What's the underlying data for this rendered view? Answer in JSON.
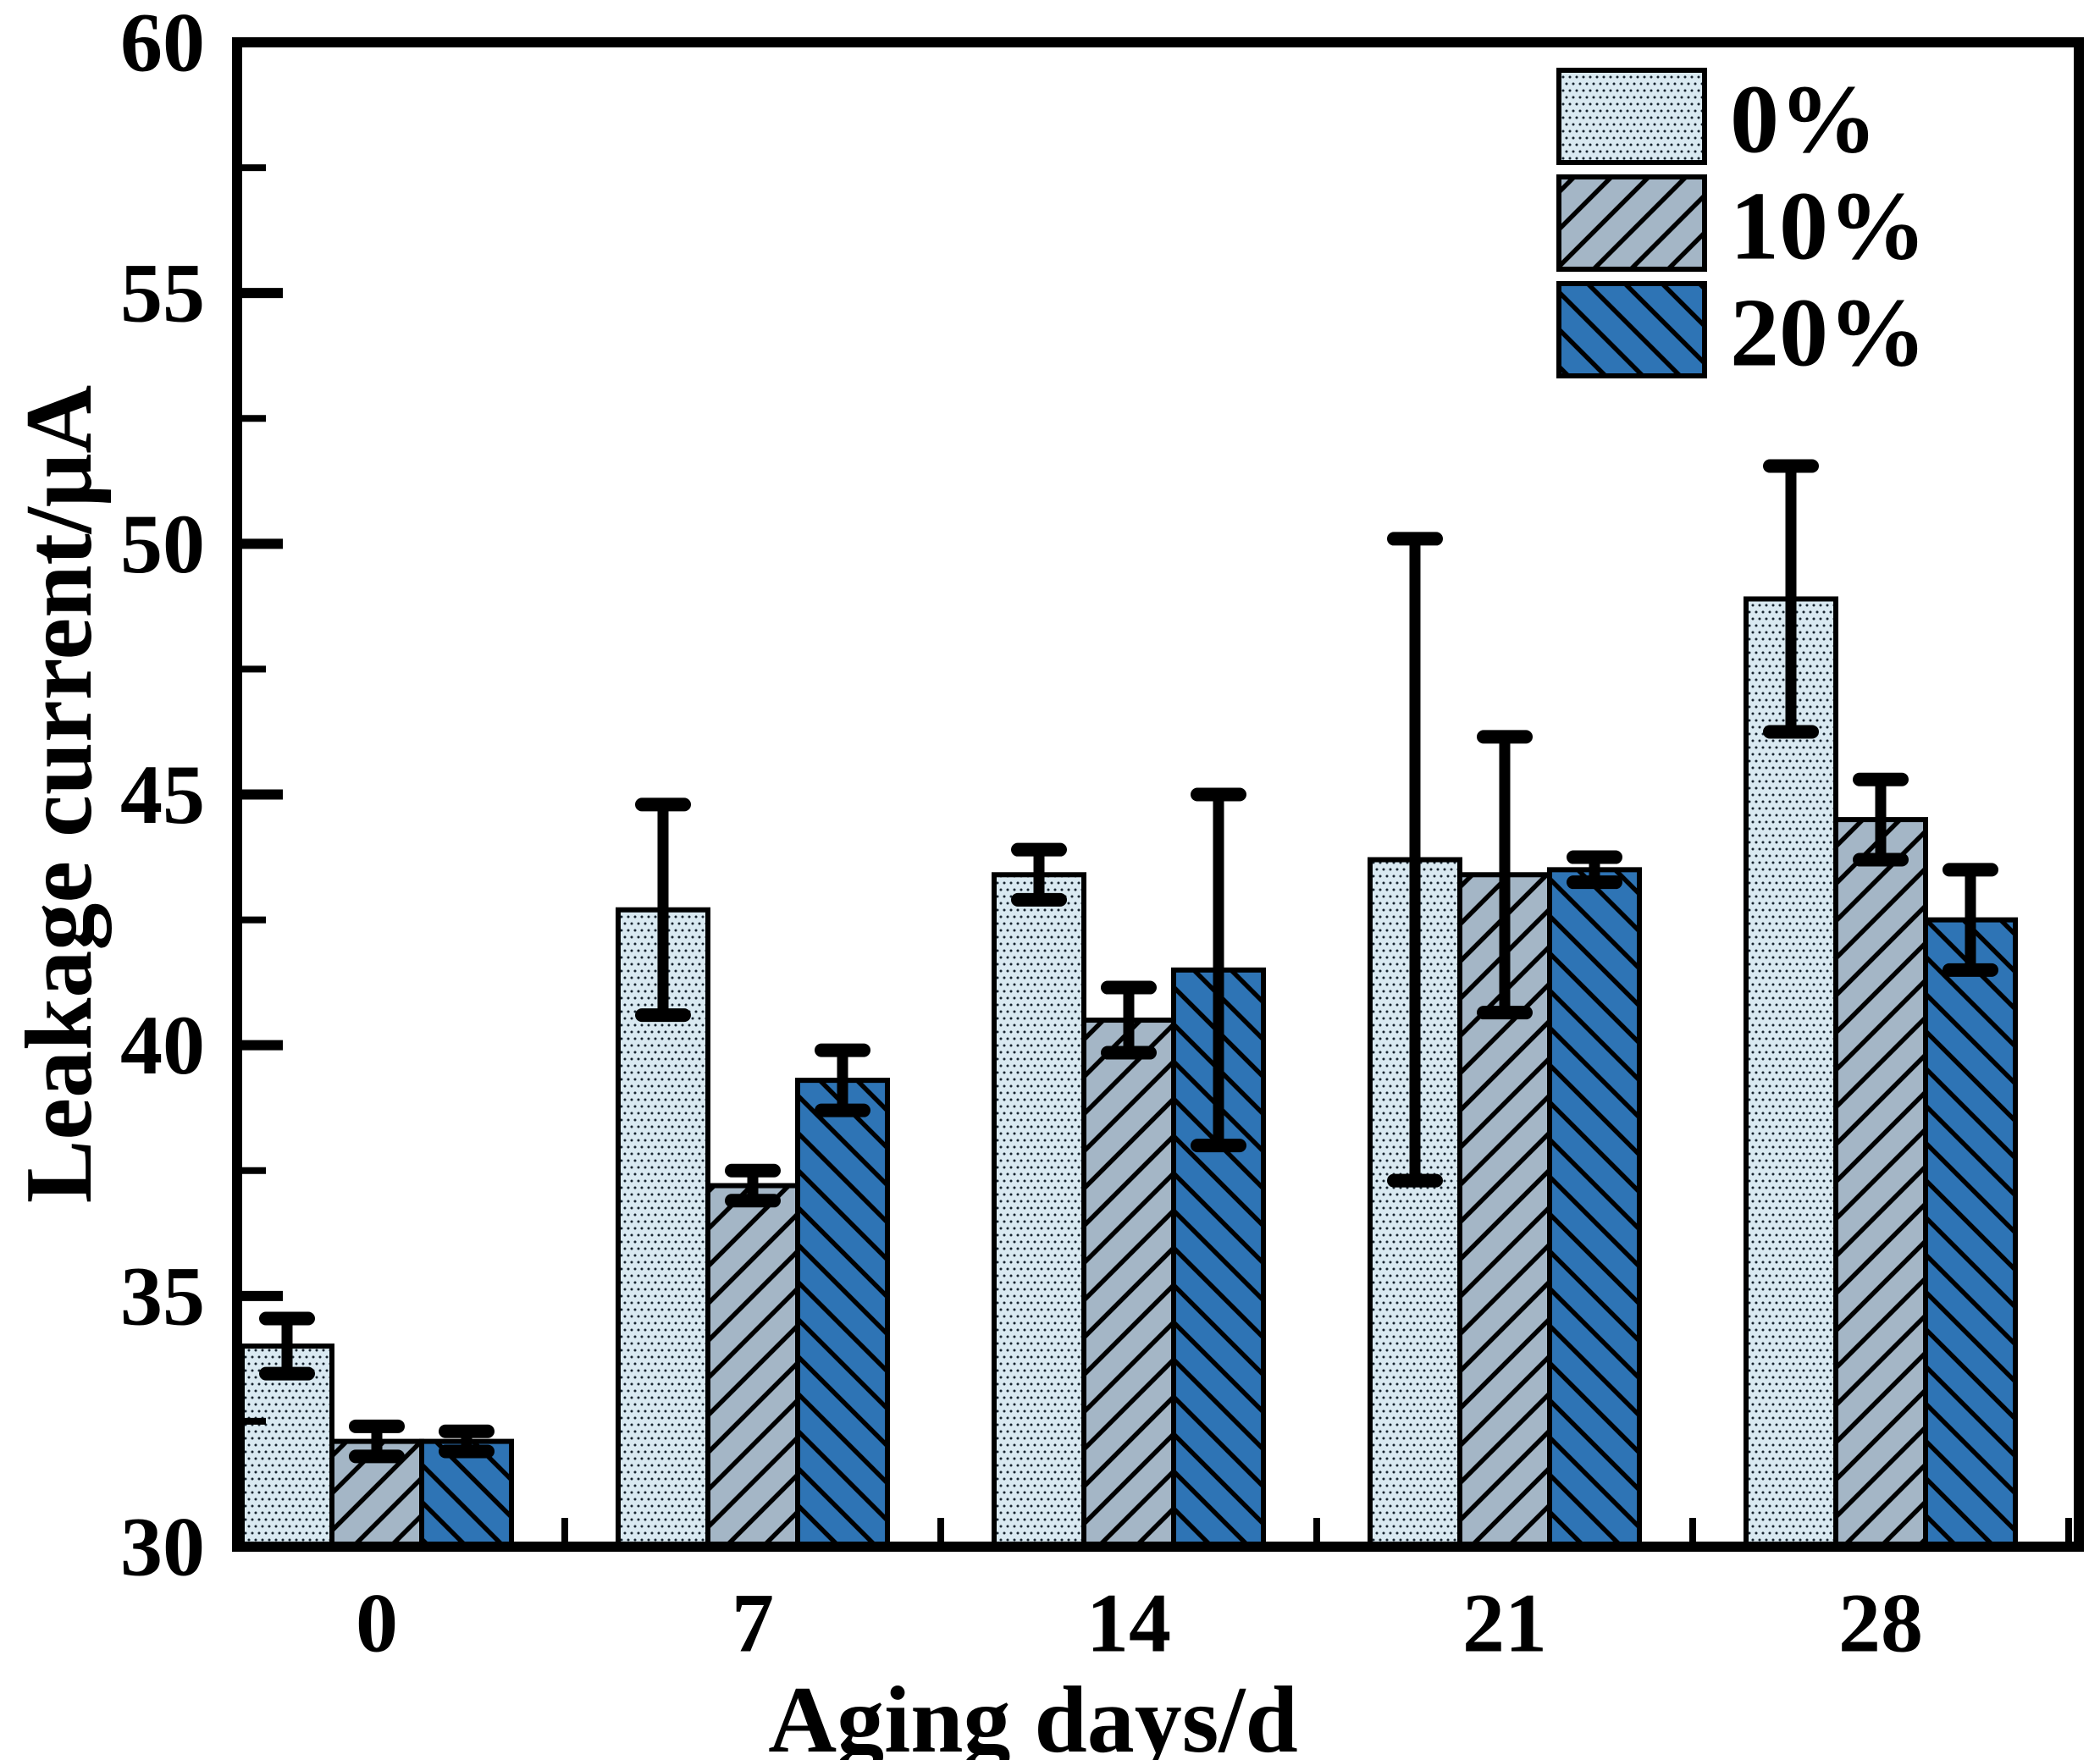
{
  "page": {
    "background": "#ffffff"
  },
  "chart_data": {
    "type": "bar",
    "title": "",
    "xlabel": "Aging days/d",
    "ylabel": "Leakage current/μA",
    "categories": [
      "0",
      "7",
      "14",
      "21",
      "28"
    ],
    "ylim": [
      30,
      60
    ],
    "yticks_major": [
      30,
      35,
      40,
      45,
      50,
      55,
      60
    ],
    "yticks_minor": [
      32.5,
      37.5,
      42.5,
      47.5,
      52.5,
      57.5
    ],
    "grid": false,
    "legend_position": "top-right",
    "error_bars": true,
    "series": [
      {
        "name": "0%",
        "fill": "#d9e9f1",
        "pattern": "dots",
        "values": [
          34.0,
          42.7,
          43.4,
          43.7,
          48.9
        ],
        "errors": [
          0.55,
          2.1,
          0.5,
          6.4,
          2.65
        ]
      },
      {
        "name": "10%",
        "fill": "#a4b6c6",
        "pattern": "diagonal-forward",
        "values": [
          32.1,
          37.2,
          40.5,
          43.4,
          44.5
        ],
        "errors": [
          0.3,
          0.3,
          0.65,
          2.75,
          0.8
        ]
      },
      {
        "name": "20%",
        "fill": "#2e74b5",
        "pattern": "diagonal-backward",
        "values": [
          32.1,
          39.3,
          41.5,
          43.5,
          42.5
        ],
        "errors": [
          0.2,
          0.6,
          3.5,
          0.25,
          1.0
        ]
      }
    ],
    "colors": {
      "axis": "#000000",
      "bar_border": "#000000",
      "pattern_line": "#000000",
      "dot": "#16242f",
      "error_bar": "#000000"
    }
  }
}
